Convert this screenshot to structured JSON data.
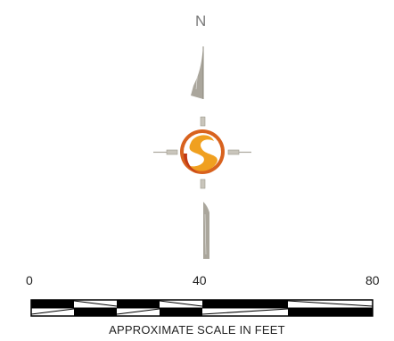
{
  "compass": {
    "north_label": "N",
    "colors": {
      "needle": "#aaa69c",
      "needle_line": "#8a8678",
      "emblem_outer": "#d8621e",
      "emblem_inner": "#f0a020",
      "emblem_dark": "#c23a14"
    },
    "icon": "north-arrow-compass"
  },
  "scale_bar": {
    "labels": [
      "0",
      "40",
      "80"
    ],
    "caption": "APPROXIMATE SCALE IN FEET",
    "units": "feet",
    "max_value": 80
  }
}
